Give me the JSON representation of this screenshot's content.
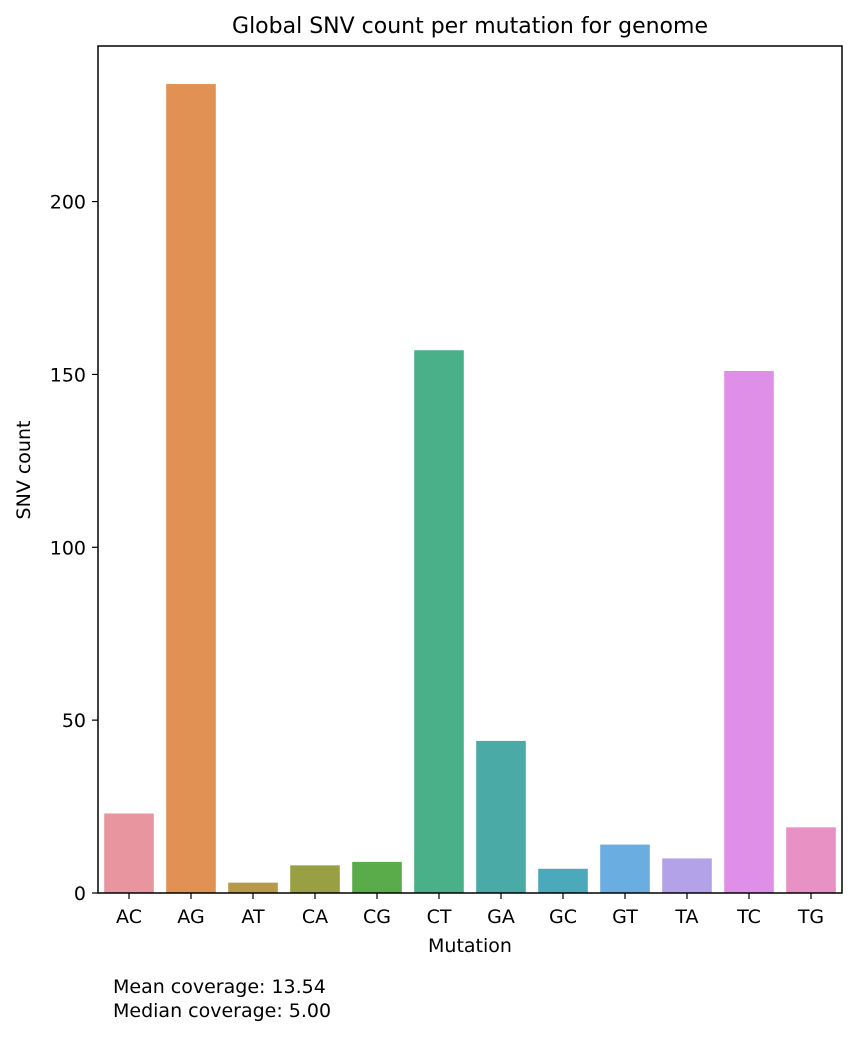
{
  "chart_data": {
    "type": "bar",
    "title": "Global SNV count per mutation for genome",
    "xlabel": "Mutation",
    "ylabel": "SNV count",
    "categories": [
      "AC",
      "AG",
      "AT",
      "CA",
      "CG",
      "CT",
      "GA",
      "GC",
      "GT",
      "TA",
      "TC",
      "TG"
    ],
    "values": [
      23,
      234,
      3,
      8,
      9,
      157,
      44,
      7,
      14,
      10,
      151,
      19
    ],
    "colors": [
      "#e8959f",
      "#e19153",
      "#b69a4a",
      "#99a044",
      "#5aac4a",
      "#4ab08a",
      "#4aaaa5",
      "#4aa9bb",
      "#6aade0",
      "#b3a2e8",
      "#df8fe7",
      "#e891c5"
    ],
    "ylim": [
      0,
      245
    ],
    "yticks": [
      0,
      50,
      100,
      150,
      200
    ],
    "grid": false,
    "legend": "none"
  },
  "notes": {
    "mean_coverage": "Mean coverage: 13.54",
    "median_coverage": "Median coverage: 5.00"
  }
}
